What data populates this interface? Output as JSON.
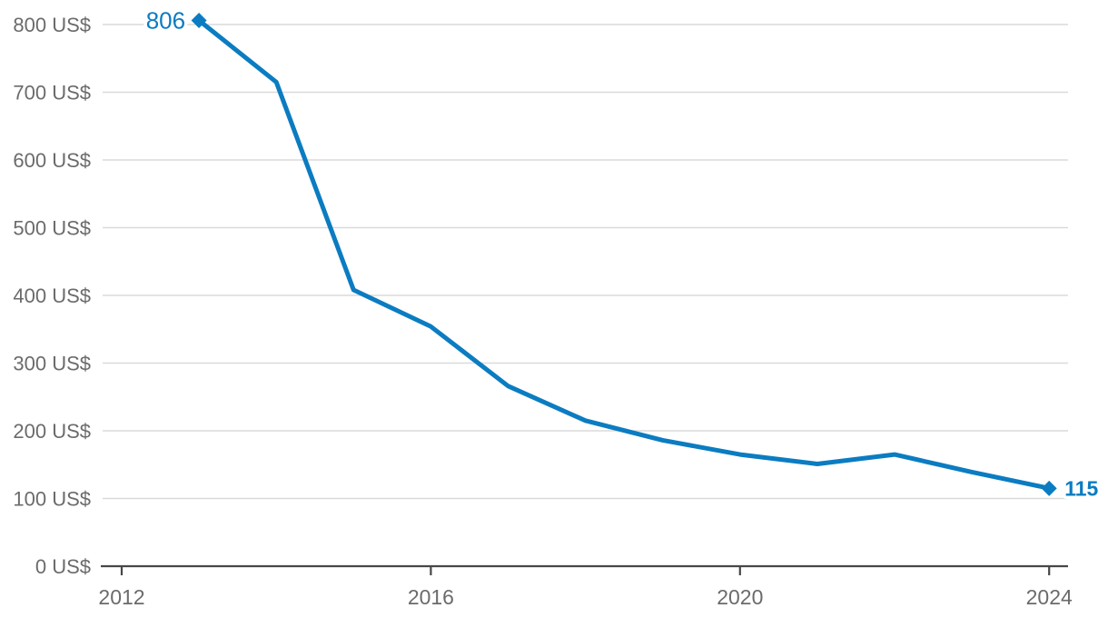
{
  "chart_data": {
    "type": "line",
    "title": "",
    "xlabel": "",
    "ylabel": "",
    "x": [
      2013,
      2014,
      2015,
      2016,
      2017,
      2018,
      2019,
      2020,
      2021,
      2022,
      2023,
      2024
    ],
    "values": [
      806,
      715,
      408,
      354,
      266,
      215,
      186,
      165,
      151,
      165,
      139,
      115
    ],
    "ylim": [
      0,
      800
    ],
    "xlim": [
      2012,
      2024
    ],
    "y_ticks": [
      0,
      100,
      200,
      300,
      400,
      500,
      600,
      700,
      800
    ],
    "y_tick_labels": [
      "0 US$",
      "100 US$",
      "200 US$",
      "300 US$",
      "400 US$",
      "500 US$",
      "600 US$",
      "700 US$",
      "800 US$"
    ],
    "x_ticks": [
      2012,
      2016,
      2020,
      2024
    ],
    "x_tick_labels": [
      "2012",
      "2016",
      "2020",
      "2024"
    ],
    "grid": "horizontal",
    "legend": "none",
    "point_labels": {
      "first": "806",
      "last": "115"
    },
    "colors": {
      "line": "#0b7cc1",
      "marker": "#0b7cc1",
      "point_label": "#0b7cc1",
      "grid": "#dadada",
      "axis": "#474747",
      "tick_label": "#6b6b6b",
      "background": "#ffffff"
    }
  }
}
